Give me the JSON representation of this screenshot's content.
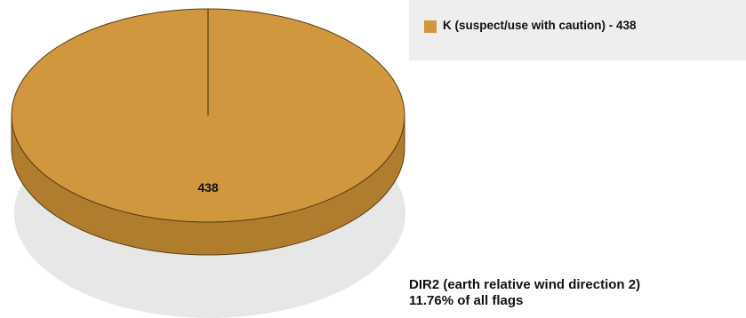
{
  "chart_data": {
    "type": "pie",
    "categories": [
      "K (suspect/use with caution)"
    ],
    "values": [
      438
    ],
    "slice_labels": [
      "438"
    ],
    "legend": [
      {
        "label": "K (suspect/use with caution) - 438",
        "color": "#d0973e"
      }
    ],
    "legend_position": "top-right",
    "caption_line1": "DIR2 (earth relative wind direction 2)",
    "caption_line2": "11.76% of all flags",
    "colors": {
      "slice": "#d0973e",
      "side": "#b07c2d",
      "outline": "#5a3f14",
      "shadow": "#e7e7e7"
    }
  }
}
